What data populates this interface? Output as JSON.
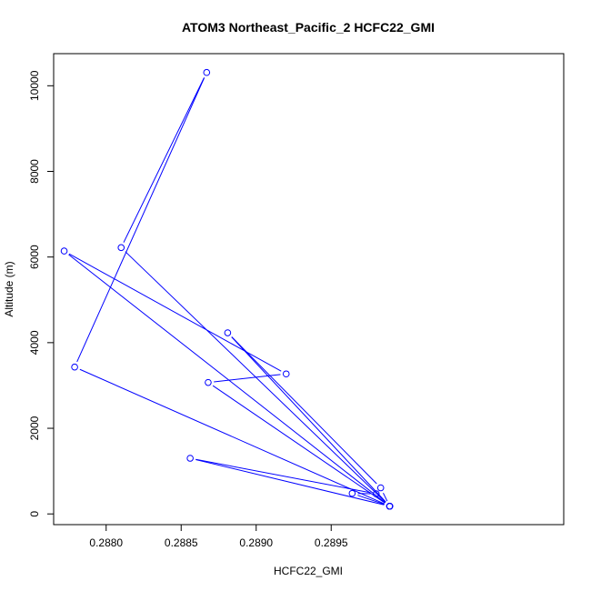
{
  "chart_data": {
    "type": "line",
    "title": "ATOM3 Northeast_Pacific_2 HCFC22_GMI",
    "xlabel": "HCFC22_GMI",
    "ylabel": "Altitude (m)",
    "xlim": [
      0.28765,
      0.29105
    ],
    "ylim": [
      -250,
      10750
    ],
    "xticks": [
      0.288,
      0.2885,
      0.289,
      0.2895
    ],
    "xtick_labels": [
      "0.2880",
      "0.2885",
      "0.2890",
      "0.2895"
    ],
    "yticks": [
      0,
      2000,
      4000,
      6000,
      8000,
      10000
    ],
    "ytick_labels": [
      "0",
      "2000",
      "4000",
      "6000",
      "8000",
      "10000"
    ],
    "grid": false,
    "markers": "open-circle",
    "series": [
      {
        "color": "#0000ff",
        "points": [
          {
            "x": 0.28989,
            "y": 180
          },
          {
            "x": 0.28964,
            "y": 480
          },
          {
            "x": 0.2898,
            "y": 470
          },
          {
            "x": 0.28856,
            "y": 1300
          },
          {
            "x": 0.28989,
            "y": 180
          },
          {
            "x": 0.28779,
            "y": 3430
          },
          {
            "x": 0.28867,
            "y": 10310
          },
          {
            "x": 0.2881,
            "y": 6220
          },
          {
            "x": 0.28989,
            "y": 180
          },
          {
            "x": 0.28772,
            "y": 6140
          },
          {
            "x": 0.2892,
            "y": 3270
          },
          {
            "x": 0.28868,
            "y": 3070
          },
          {
            "x": 0.28989,
            "y": 180
          },
          {
            "x": 0.28881,
            "y": 4230
          },
          {
            "x": 0.28983,
            "y": 610
          },
          {
            "x": 0.28989,
            "y": 180
          }
        ]
      }
    ]
  }
}
